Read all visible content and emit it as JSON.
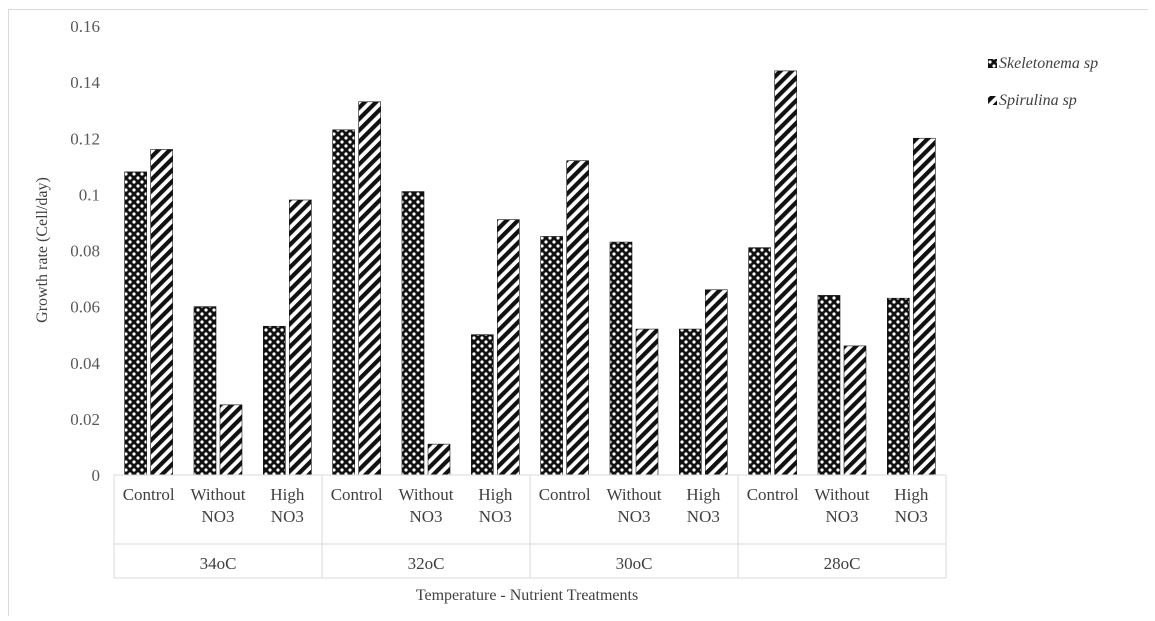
{
  "chart_data": {
    "type": "bar",
    "ylabel": "Growth rate (Cell/day)",
    "xlabel": "Temperature - Nutrient Treatments",
    "ylim": [
      0,
      0.16
    ],
    "yticks": [
      "0",
      "0.02",
      "0.04",
      "0.06",
      "0.08",
      "0.1",
      "0.12",
      "0.14",
      "0.16"
    ],
    "grid": false,
    "legend_position": "top-right",
    "groups": [
      {
        "label": "34oC",
        "categories": [
          [
            "Control"
          ],
          [
            "Without",
            "NO3"
          ],
          [
            "High",
            "NO3"
          ]
        ]
      },
      {
        "label": "32oC",
        "categories": [
          [
            "Control"
          ],
          [
            "Without",
            "NO3"
          ],
          [
            "High",
            "NO3"
          ]
        ]
      },
      {
        "label": "30oC",
        "categories": [
          [
            "Control"
          ],
          [
            "Without",
            "NO3"
          ],
          [
            "High",
            "NO3"
          ]
        ]
      },
      {
        "label": "28oC",
        "categories": [
          [
            "Control"
          ],
          [
            "Without",
            "NO3"
          ],
          [
            "High",
            "NO3"
          ]
        ]
      }
    ],
    "series": [
      {
        "name": "Skeletonema sp",
        "pattern": "checker",
        "values": [
          0.108,
          0.06,
          0.053,
          0.123,
          0.101,
          0.05,
          0.085,
          0.083,
          0.052,
          0.081,
          0.064,
          0.063
        ]
      },
      {
        "name": "Spirulina sp",
        "pattern": "diagonal",
        "values": [
          0.116,
          0.025,
          0.098,
          0.133,
          0.011,
          0.091,
          0.112,
          0.052,
          0.066,
          0.144,
          0.046,
          0.12
        ]
      }
    ]
  }
}
